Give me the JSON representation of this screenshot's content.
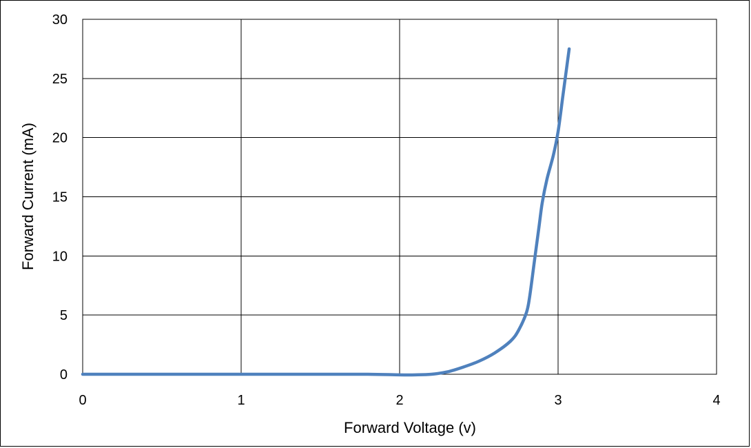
{
  "chart_data": {
    "type": "line",
    "title": "",
    "xlabel": "Forward Voltage (v)",
    "ylabel": "Forward Current (mA)",
    "xlim": [
      0,
      4
    ],
    "ylim": [
      0,
      30
    ],
    "x_ticks": [
      "0",
      "1",
      "2",
      "3",
      "4"
    ],
    "y_ticks": [
      "0",
      "5",
      "10",
      "15",
      "20",
      "25",
      "30"
    ],
    "grid": true,
    "legend": "none",
    "series": [
      {
        "color": "#4f81bd",
        "x": [
          0,
          0.5,
          1.0,
          1.5,
          1.8,
          2.0,
          2.1,
          2.2,
          2.3,
          2.4,
          2.5,
          2.6,
          2.7,
          2.75,
          2.8,
          2.82,
          2.85,
          2.88,
          2.9,
          2.93,
          2.97,
          3.0,
          3.03,
          3.05,
          3.07
        ],
        "y": [
          0,
          0,
          0,
          0,
          0,
          -0.05,
          -0.05,
          0,
          0.2,
          0.6,
          1.1,
          1.8,
          2.8,
          3.7,
          5.2,
          6.5,
          9.5,
          12.5,
          14.5,
          16.5,
          18.5,
          20.5,
          23.5,
          25.5,
          27.5
        ]
      }
    ]
  }
}
